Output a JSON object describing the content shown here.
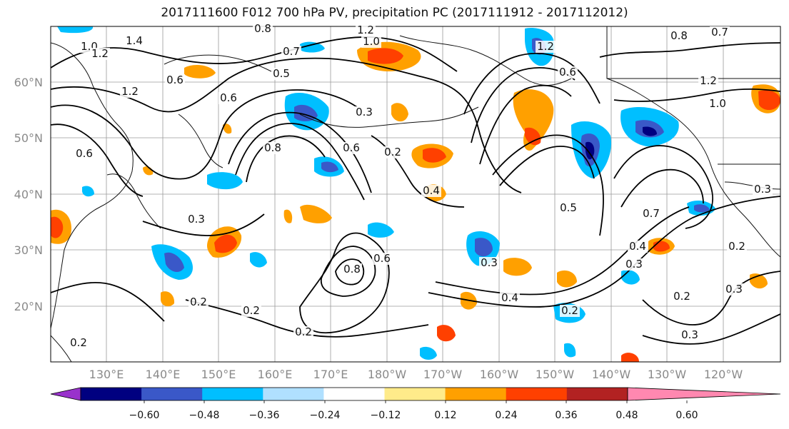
{
  "title": "2017111600 F012 700 hPa PV, precipitation PC (2017111912 - 2017112012)",
  "lat_labels": [
    "60°N",
    "50°N",
    "40°N",
    "30°N",
    "20°N"
  ],
  "lon_labels": [
    "130°E",
    "140°E",
    "150°E",
    "160°E",
    "170°E",
    "180°W",
    "170°W",
    "160°W",
    "150°W",
    "140°W",
    "130°W",
    "120°W"
  ],
  "colorbar": {
    "colors": [
      "#9932cc",
      "#000080",
      "#3a58c8",
      "#00bfff",
      "#b0e0ff",
      "#ffffff",
      "#ffeb8a",
      "#ffa000",
      "#ff4000",
      "#b22222",
      "#ff88b0"
    ],
    "ticks": [
      "−0.60",
      "−0.48",
      "−0.36",
      "−0.24",
      "−0.12",
      "0.12",
      "0.24",
      "0.36",
      "0.48",
      "0.60"
    ]
  },
  "contour_labels": [
    {
      "text": "1.0"
    },
    {
      "text": "1.2"
    },
    {
      "text": "1.4"
    },
    {
      "text": "0.8"
    },
    {
      "text": "1.2"
    },
    {
      "text": "1.0"
    },
    {
      "text": "0.7"
    },
    {
      "text": "0.5"
    },
    {
      "text": "0.6"
    },
    {
      "text": "1.2"
    },
    {
      "text": "0.6"
    },
    {
      "text": "0.8"
    },
    {
      "text": "0.6"
    },
    {
      "text": "0.3"
    },
    {
      "text": "0.2"
    },
    {
      "text": "0.6"
    },
    {
      "text": "0.4"
    },
    {
      "text": "0.5"
    },
    {
      "text": "0.3"
    },
    {
      "text": "0.8"
    },
    {
      "text": "0.6"
    },
    {
      "text": "0.3"
    },
    {
      "text": "0.4"
    },
    {
      "text": "0.2"
    },
    {
      "text": "0.2"
    },
    {
      "text": "0.2"
    },
    {
      "text": "0.2"
    },
    {
      "text": "0.7"
    },
    {
      "text": "0.3"
    },
    {
      "text": "0.4"
    },
    {
      "text": "0.2"
    },
    {
      "text": "0.3"
    },
    {
      "text": "0.2"
    },
    {
      "text": "0.3"
    },
    {
      "text": "1.2"
    },
    {
      "text": "1.0"
    },
    {
      "text": "0.8"
    },
    {
      "text": "0.7"
    },
    {
      "text": "1.2"
    },
    {
      "text": "0.6"
    },
    {
      "text": "0.3"
    },
    {
      "text": "0.2"
    }
  ]
}
